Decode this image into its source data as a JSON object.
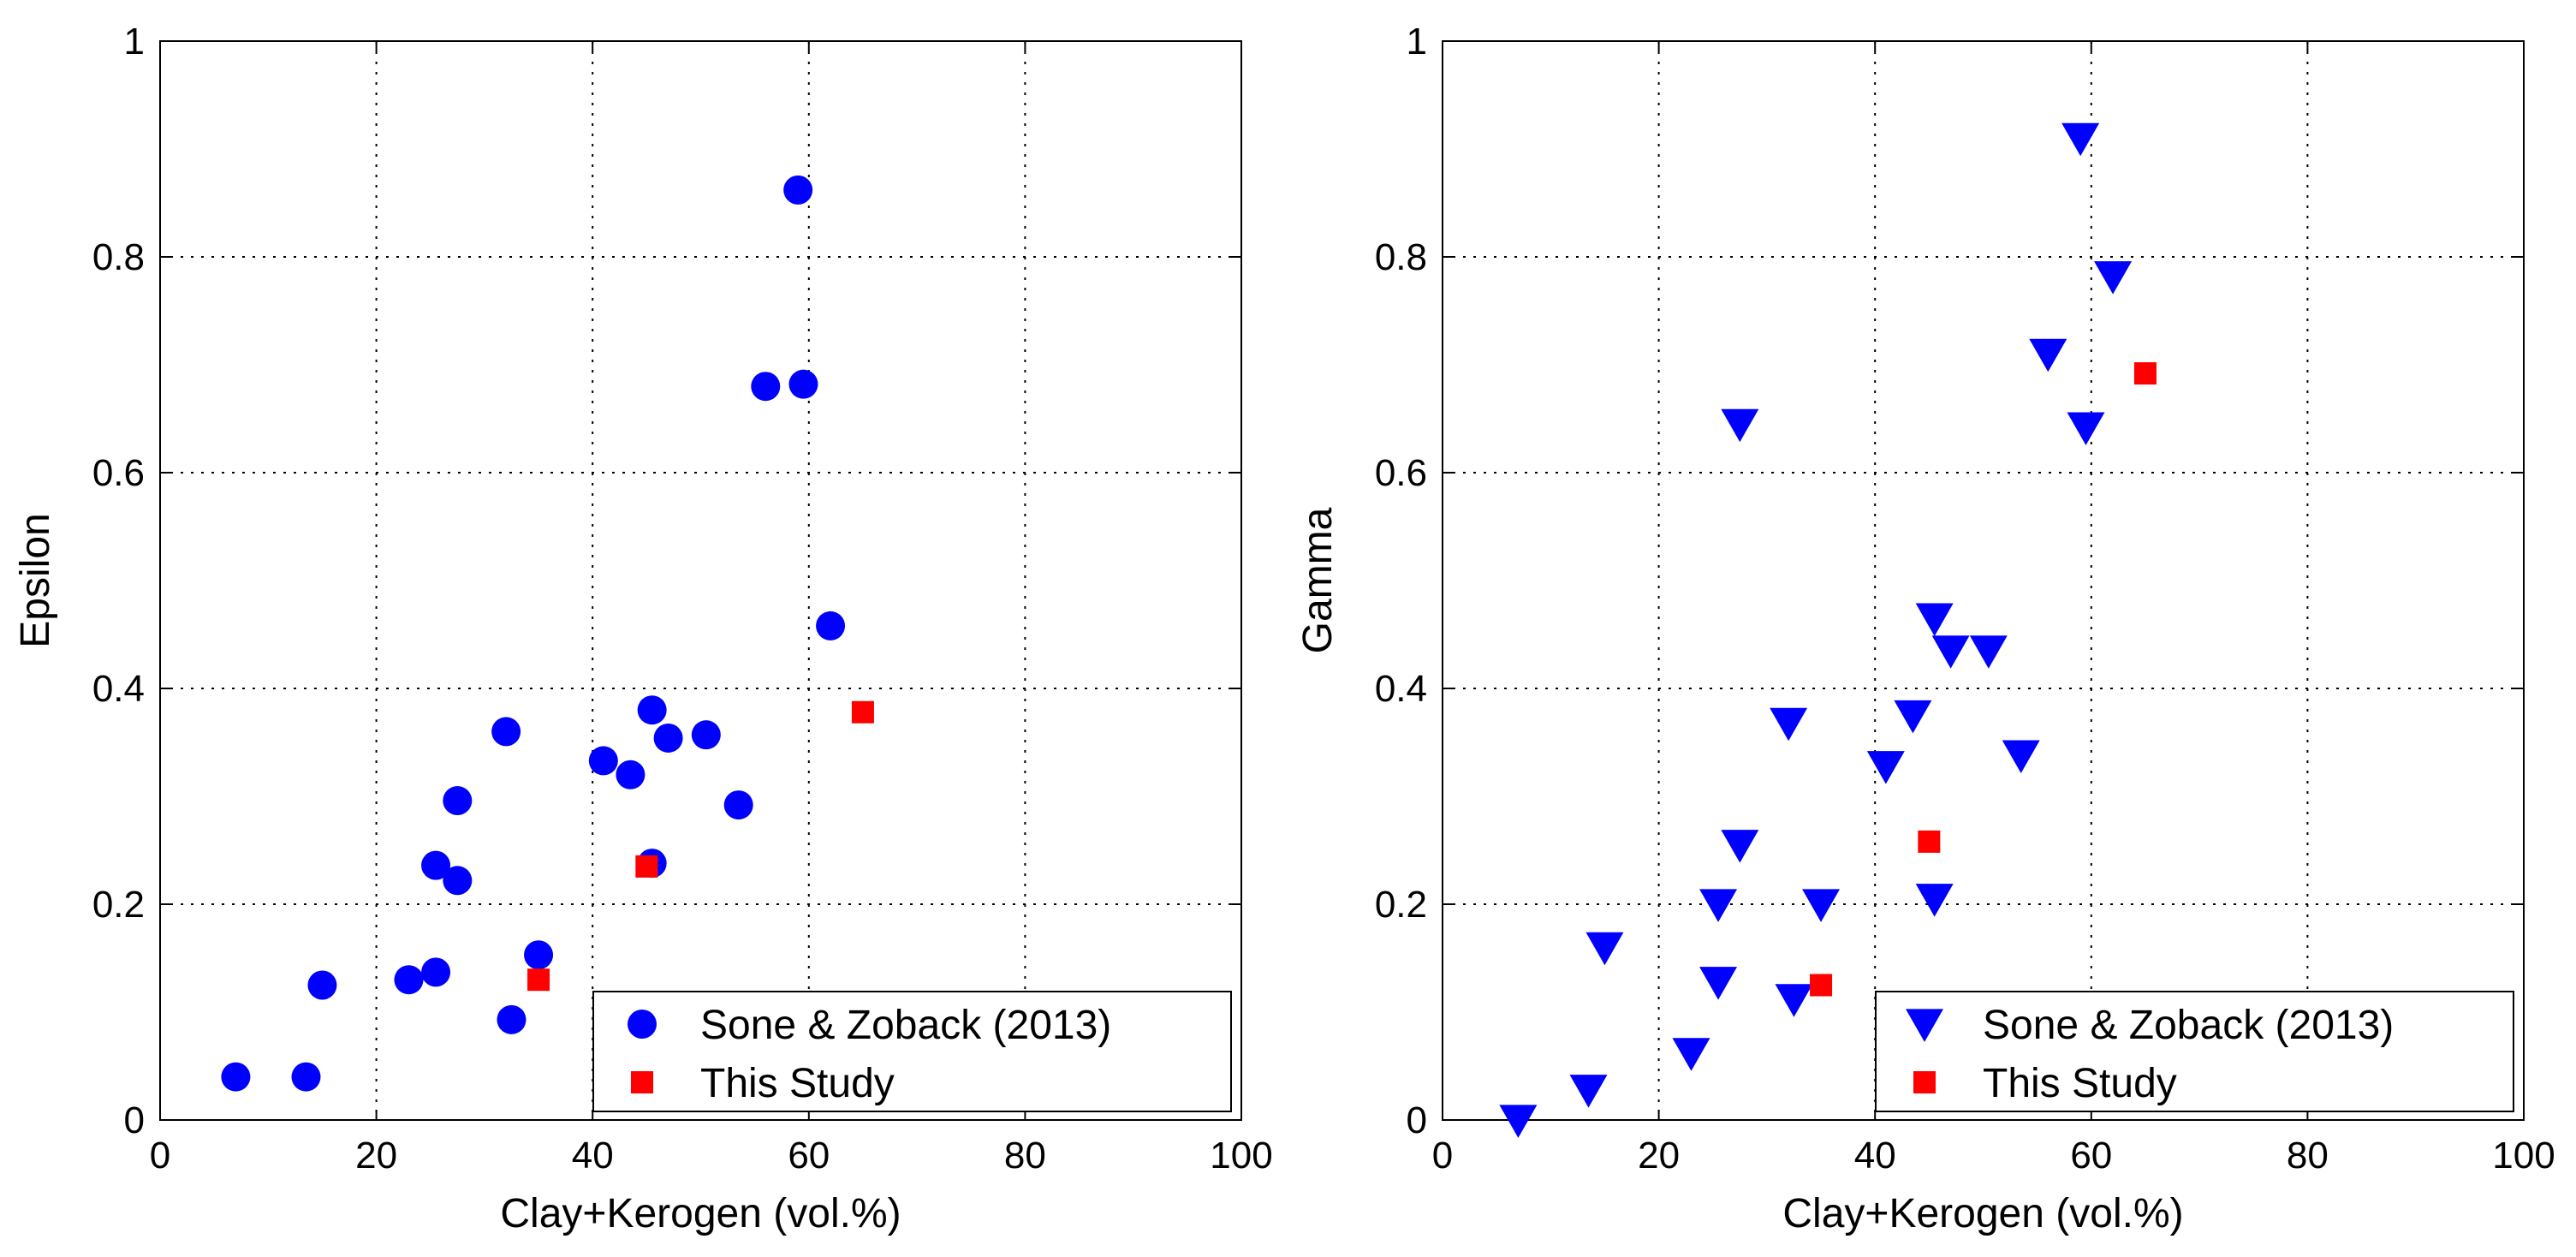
{
  "charts": [
    {
      "id": "left",
      "type": "scatter",
      "xlabel": "Clay+Kerogen (vol.%)",
      "ylabel": "Epsilon",
      "xlim": [
        0,
        100
      ],
      "ylim": [
        0,
        1
      ],
      "xticks": [
        "0",
        "20",
        "40",
        "60",
        "80",
        "100"
      ],
      "yticks": [
        "0",
        "0.2",
        "0.4",
        "0.6",
        "0.8",
        "1"
      ],
      "grid": true,
      "legend_position": "bottom-right",
      "series": [
        {
          "name": "Sone & Zoback (2013)",
          "marker": "circle",
          "color": "#0000ff",
          "points": [
            [
              7,
              0.04
            ],
            [
              13.5,
              0.04
            ],
            [
              15,
              0.125
            ],
            [
              23,
              0.13
            ],
            [
              25.5,
              0.137
            ],
            [
              25.5,
              0.236
            ],
            [
              27.5,
              0.222
            ],
            [
              27.5,
              0.296
            ],
            [
              32,
              0.36
            ],
            [
              32.5,
              0.093
            ],
            [
              35,
              0.153
            ],
            [
              41,
              0.333
            ],
            [
              43.5,
              0.32
            ],
            [
              45.5,
              0.38
            ],
            [
              45.5,
              0.238
            ],
            [
              47,
              0.354
            ],
            [
              50.5,
              0.357
            ],
            [
              53.5,
              0.292
            ],
            [
              56,
              0.68
            ],
            [
              59,
              0.862
            ],
            [
              59.5,
              0.682
            ],
            [
              62,
              0.458
            ]
          ]
        },
        {
          "name": "This Study",
          "marker": "square",
          "color": "#ff0000",
          "points": [
            [
              35,
              0.13
            ],
            [
              45,
              0.235
            ],
            [
              65,
              0.378
            ]
          ]
        }
      ]
    },
    {
      "id": "right",
      "type": "scatter",
      "xlabel": "Clay+Kerogen (vol.%)",
      "ylabel": "Gamma",
      "xlim": [
        0,
        100
      ],
      "ylim": [
        0,
        1
      ],
      "xticks": [
        "0",
        "20",
        "40",
        "60",
        "80",
        "100"
      ],
      "yticks": [
        "0",
        "0.2",
        "0.4",
        "0.6",
        "0.8",
        "1"
      ],
      "grid": true,
      "legend_position": "bottom-right",
      "series": [
        {
          "name": "Sone & Zoback (2013)",
          "marker": "triangle-down",
          "color": "#0000ff",
          "points": [
            [
              7,
              0.0
            ],
            [
              13.5,
              0.028
            ],
            [
              15,
              0.16
            ],
            [
              23,
              0.062
            ],
            [
              25.5,
              0.128
            ],
            [
              25.5,
              0.2
            ],
            [
              27.5,
              0.255
            ],
            [
              27.5,
              0.645
            ],
            [
              32,
              0.368
            ],
            [
              32.5,
              0.112
            ],
            [
              35,
              0.2
            ],
            [
              41,
              0.328
            ],
            [
              43.5,
              0.375
            ],
            [
              45.5,
              0.465
            ],
            [
              45.5,
              0.205
            ],
            [
              47,
              0.435
            ],
            [
              50.5,
              0.435
            ],
            [
              53.5,
              0.338
            ],
            [
              56,
              0.71
            ],
            [
              59,
              0.91
            ],
            [
              59.5,
              0.642
            ],
            [
              62,
              0.782
            ]
          ]
        },
        {
          "name": "This Study",
          "marker": "square",
          "color": "#ff0000",
          "points": [
            [
              35,
              0.125
            ],
            [
              45,
              0.258
            ],
            [
              65,
              0.692
            ]
          ]
        }
      ]
    }
  ]
}
